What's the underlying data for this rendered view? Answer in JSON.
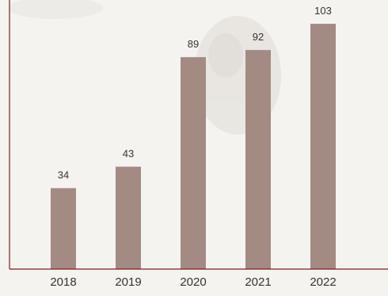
{
  "chart_data": {
    "type": "bar",
    "categories": [
      "2018",
      "2019",
      "2020",
      "2021",
      "2022"
    ],
    "values": [
      34,
      43,
      89,
      92,
      103
    ],
    "title": "",
    "xlabel": "",
    "ylabel": "",
    "ylim": [
      0,
      113
    ],
    "grid": false,
    "legend": "none",
    "bar_color": "#a38a83",
    "axis_color": "#7a1f1f",
    "label_color": "#333333",
    "background": "#f5f3ef"
  }
}
